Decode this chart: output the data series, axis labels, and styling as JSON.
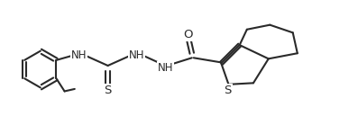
{
  "bg_color": "#ffffff",
  "line_color": "#2a2a2a",
  "line_width": 1.5,
  "font_size": 8.5,
  "xlim": [
    0,
    7.8
  ],
  "ylim": [
    -0.3,
    1.9
  ],
  "figsize": [
    3.97,
    1.49
  ],
  "dpi": 100
}
